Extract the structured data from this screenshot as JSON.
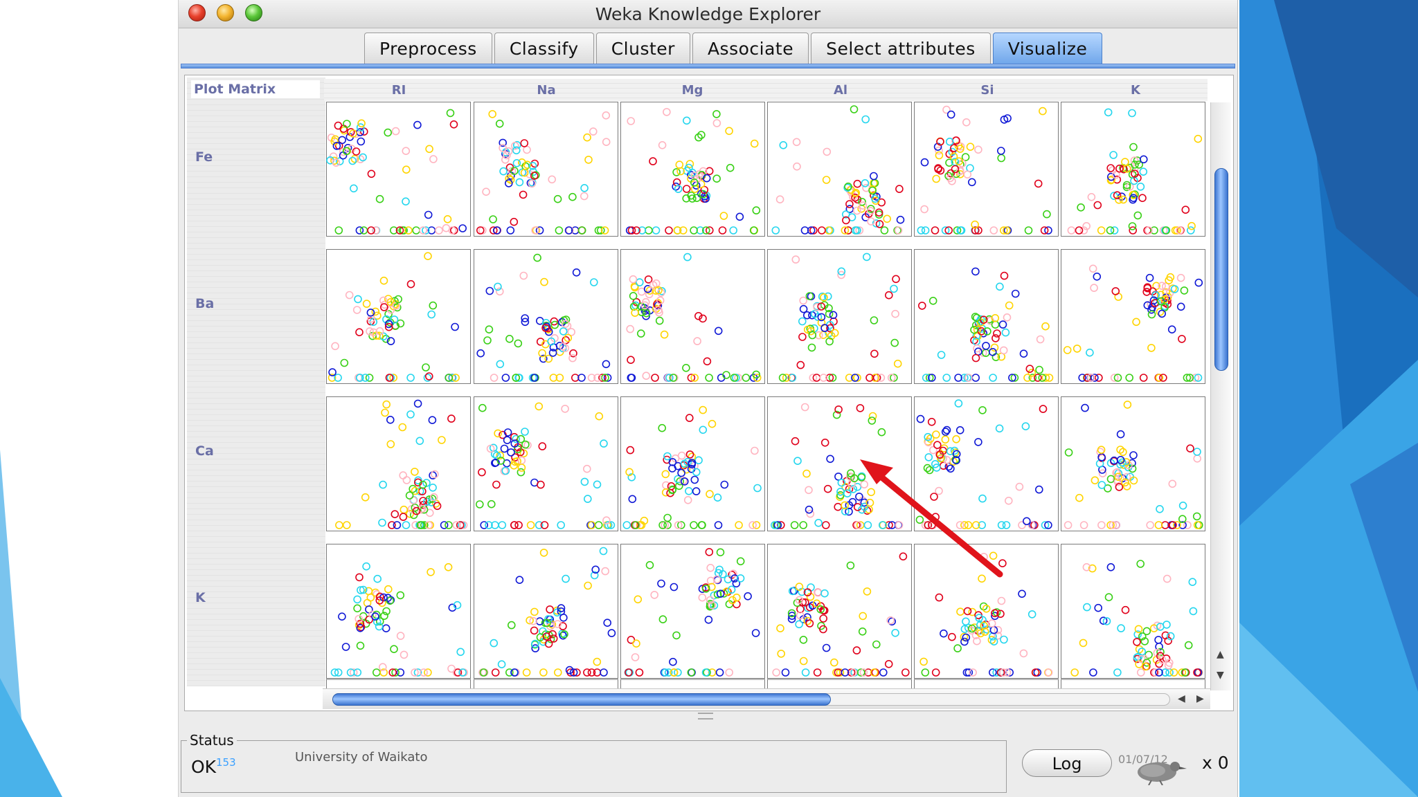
{
  "window": {
    "title": "Weka Knowledge Explorer"
  },
  "tabs": [
    {
      "label": "Preprocess",
      "active": false
    },
    {
      "label": "Classify",
      "active": false
    },
    {
      "label": "Cluster",
      "active": false
    },
    {
      "label": "Associate",
      "active": false
    },
    {
      "label": "Select attributes",
      "active": false
    },
    {
      "label": "Visualize",
      "active": true
    }
  ],
  "plot_matrix": {
    "label": "Plot Matrix",
    "columns": [
      "RI",
      "Na",
      "Mg",
      "Al",
      "Si",
      "K"
    ],
    "rows": [
      "Fe",
      "Ba",
      "Ca",
      "K"
    ],
    "class_colors": [
      "#e0001b",
      "#1019d6",
      "#25d6ee",
      "#ffd400",
      "#39d016",
      "#ffb4c0"
    ]
  },
  "status": {
    "title": "Status",
    "message": "OK",
    "count": "153",
    "organization": "University of Waikato",
    "log_label": "Log",
    "date": "01/07/12",
    "x_count": "x 0"
  },
  "colors": {
    "accent": "#5a8fdc",
    "arrow": "#e0141b",
    "slide_blue": "#1f84d2"
  }
}
